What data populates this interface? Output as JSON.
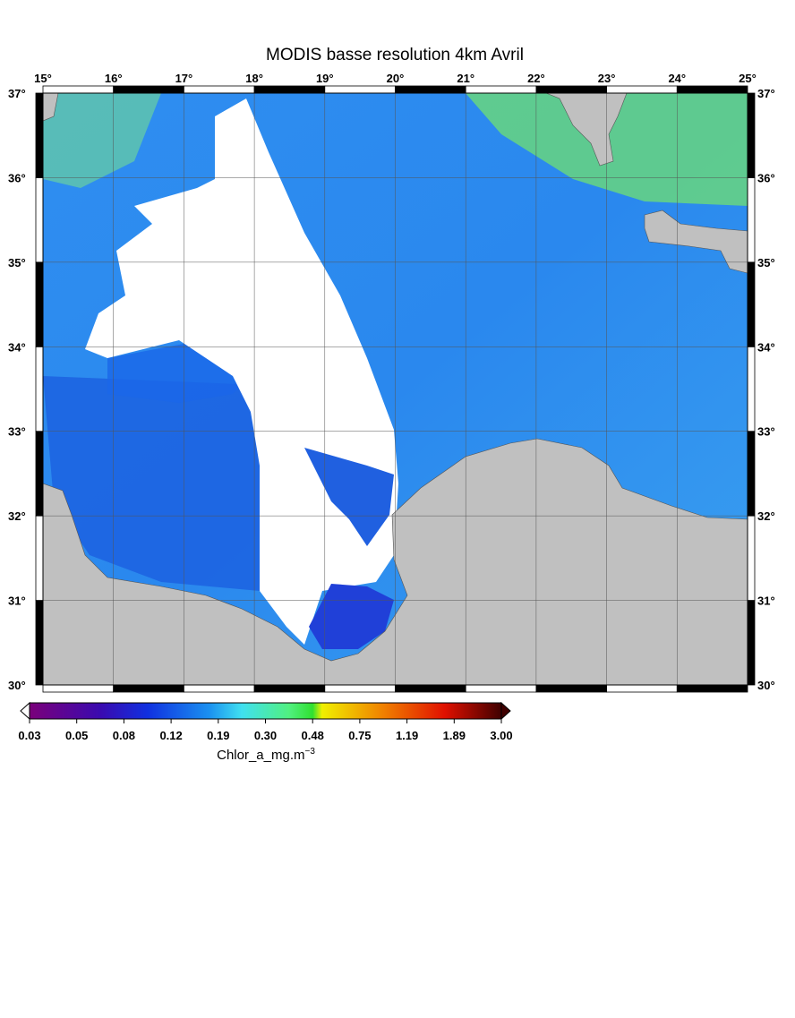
{
  "map": {
    "title": "MODIS basse resolution 4km Avril",
    "lon_labels": [
      "15°",
      "16°",
      "17°",
      "18°",
      "19°",
      "20°",
      "21°",
      "22°",
      "23°",
      "24°",
      "25°"
    ],
    "lat_labels": [
      "30°",
      "31°",
      "32°",
      "33°",
      "34°",
      "35°",
      "36°",
      "37°"
    ]
  },
  "colorbar": {
    "ticks": [
      "0.03",
      "0.05",
      "0.08",
      "0.12",
      "0.19",
      "0.30",
      "0.48",
      "0.75",
      "1.19",
      "1.89",
      "3.00"
    ],
    "label": "Chlor_a_mg.m",
    "label_exponent": "−3"
  }
}
